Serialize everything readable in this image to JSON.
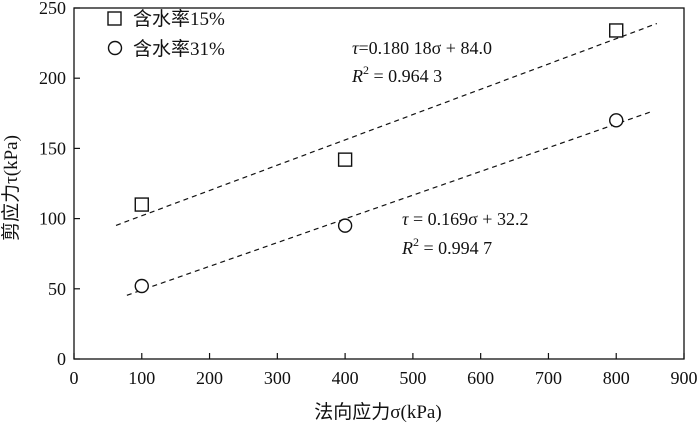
{
  "chart_data": {
    "type": "scatter",
    "title": "",
    "xlabel": "法向应力σ(kPa)",
    "ylabel": "剪应力τ(kPa)",
    "xlim": [
      0,
      900
    ],
    "ylim": [
      0,
      250
    ],
    "xticks": [
      0,
      100,
      200,
      300,
      400,
      500,
      600,
      700,
      800,
      900
    ],
    "yticks": [
      0,
      50,
      100,
      150,
      200,
      250
    ],
    "grid": false,
    "legend_position": "top-left",
    "series": [
      {
        "name": "含水率15%",
        "marker": "square",
        "x": [
          100,
          400,
          800
        ],
        "y": [
          110,
          142,
          234
        ],
        "fit": {
          "slope": 0.18018,
          "intercept": 84.0,
          "x_range": [
            62,
            860
          ],
          "equation_lhs": "τ",
          "equation_rhs": "=0.180 18σ + 84.0",
          "r2_label": "R",
          "r2_sup": "2",
          "r2_value": " = 0.964 3"
        }
      },
      {
        "name": "含水率31%",
        "marker": "circle",
        "x": [
          100,
          400,
          800
        ],
        "y": [
          52,
          95,
          170
        ],
        "fit": {
          "slope": 0.169,
          "intercept": 32.2,
          "x_range": [
            78,
            855
          ],
          "equation_lhs": "τ",
          "equation_rhs": " = 0.169σ + 32.2",
          "r2_label": "R",
          "r2_sup": "2",
          "r2_value": " = 0.994 7"
        }
      }
    ]
  }
}
